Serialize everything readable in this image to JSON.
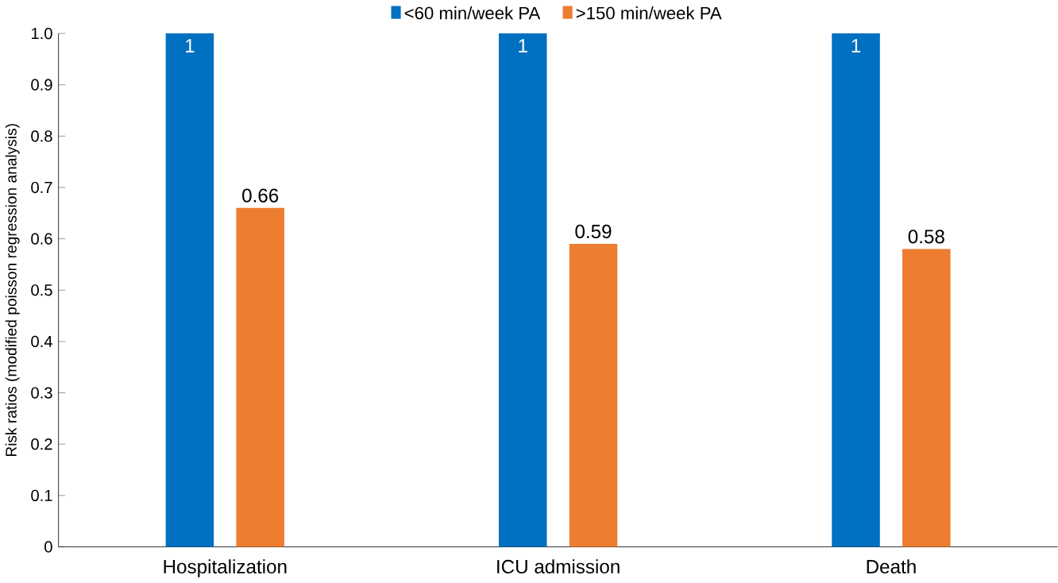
{
  "chart_data": {
    "type": "bar",
    "ylabel": "Risk ratios (modified poisson regression analysis)",
    "categories": [
      "Hospitalization",
      "ICU admission",
      "Death"
    ],
    "series": [
      {
        "name": "<60 min/week PA",
        "color": "#0070c0",
        "values": [
          1,
          1,
          1
        ]
      },
      {
        "name": ">150 min/week PA",
        "color": "#ed7d31",
        "values": [
          0.66,
          0.59,
          0.58
        ]
      }
    ],
    "ylim": [
      0,
      1
    ],
    "yticks": [
      0,
      0.1,
      0.2,
      0.3,
      0.4,
      0.5,
      0.6,
      0.7,
      0.8,
      0.9,
      {
        "value": 1,
        "label": "1.0"
      }
    ],
    "data_labels": true,
    "legend": "top",
    "grid": false
  }
}
